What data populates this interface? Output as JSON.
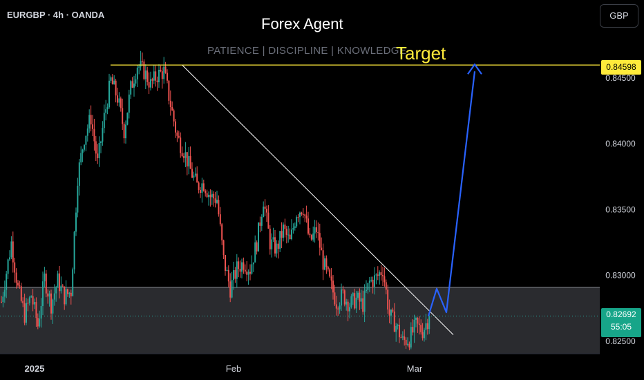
{
  "header": {
    "symbol": "EURGBP · 4h · OANDA",
    "title": "Forex Agent",
    "subtitle": "PATIENCE | DISCIPLINE | KNOWLEDGE",
    "target_label": "Target",
    "currency_button": "GBP"
  },
  "price_tags": {
    "target": "0.84598",
    "current": "0.82692",
    "countdown": "55:05"
  },
  "colors": {
    "up": "#26a69a",
    "down": "#ef5350",
    "target_line": "#ffeb3b",
    "projection": "#2962ff",
    "trendline": "#ffffff",
    "support_zone": "#2a2b2f"
  },
  "chart_data": {
    "type": "candlestick",
    "symbol": "EURGBP",
    "timeframe": "4h",
    "x_ticks": [
      "2025",
      "Feb",
      "Mar"
    ],
    "y_ticks": [
      0.825,
      0.83,
      0.835,
      0.84,
      0.845
    ],
    "y_tick_labels": [
      "0.82500",
      "0.83000",
      "0.83500",
      "0.84000",
      "0.84500"
    ],
    "ylim": [
      0.8238,
      0.8508
    ],
    "target_price": 0.84598,
    "current_price": 0.82692,
    "support_zone": [
      0.8238,
      0.8291
    ],
    "trendline": [
      [
        0.84596,
        "2025-01-24"
      ],
      [
        0.8255,
        "2025-03-04"
      ]
    ],
    "price_path": [
      [
        0,
        0.828
      ],
      [
        3,
        0.8325
      ],
      [
        5,
        0.829
      ],
      [
        7,
        0.827
      ],
      [
        9,
        0.8285
      ],
      [
        11,
        0.8262
      ],
      [
        13,
        0.8298
      ],
      [
        15,
        0.8278
      ],
      [
        17,
        0.8296
      ],
      [
        19,
        0.8284
      ],
      [
        21,
        0.8288
      ],
      [
        23,
        0.8375
      ],
      [
        25,
        0.8405
      ],
      [
        27,
        0.842
      ],
      [
        29,
        0.8385
      ],
      [
        31,
        0.842
      ],
      [
        33,
        0.8448
      ],
      [
        35,
        0.8435
      ],
      [
        37,
        0.841
      ],
      [
        39,
        0.8442
      ],
      [
        41,
        0.846
      ],
      [
        43,
        0.8455
      ],
      [
        45,
        0.8445
      ],
      [
        47,
        0.8452
      ],
      [
        49,
        0.8455
      ],
      [
        51,
        0.843
      ],
      [
        53,
        0.8405
      ],
      [
        55,
        0.8395
      ],
      [
        57,
        0.838
      ],
      [
        59,
        0.8368
      ],
      [
        61,
        0.837
      ],
      [
        63,
        0.836
      ],
      [
        65,
        0.8358
      ],
      [
        67,
        0.8312
      ],
      [
        69,
        0.829
      ],
      [
        71,
        0.8305
      ],
      [
        73,
        0.831
      ],
      [
        75,
        0.8305
      ],
      [
        77,
        0.8325
      ],
      [
        79,
        0.8358
      ],
      [
        81,
        0.8325
      ],
      [
        83,
        0.832
      ],
      [
        85,
        0.8335
      ],
      [
        87,
        0.8325
      ],
      [
        89,
        0.8348
      ],
      [
        91,
        0.8352
      ],
      [
        93,
        0.8325
      ],
      [
        95,
        0.8335
      ],
      [
        97,
        0.831
      ],
      [
        99,
        0.8295
      ],
      [
        101,
        0.828
      ],
      [
        103,
        0.8285
      ],
      [
        105,
        0.8278
      ],
      [
        107,
        0.8282
      ],
      [
        109,
        0.8278
      ],
      [
        111,
        0.8295
      ],
      [
        113,
        0.8298
      ],
      [
        115,
        0.8305
      ],
      [
        117,
        0.827
      ],
      [
        119,
        0.8262
      ],
      [
        121,
        0.825
      ],
      [
        123,
        0.8252
      ],
      [
        125,
        0.8262
      ],
      [
        127,
        0.8258
      ],
      [
        129,
        0.8269
      ]
    ],
    "projection": [
      0.82692,
      0.829,
      0.8272,
      0.8455,
      0.84598
    ]
  }
}
